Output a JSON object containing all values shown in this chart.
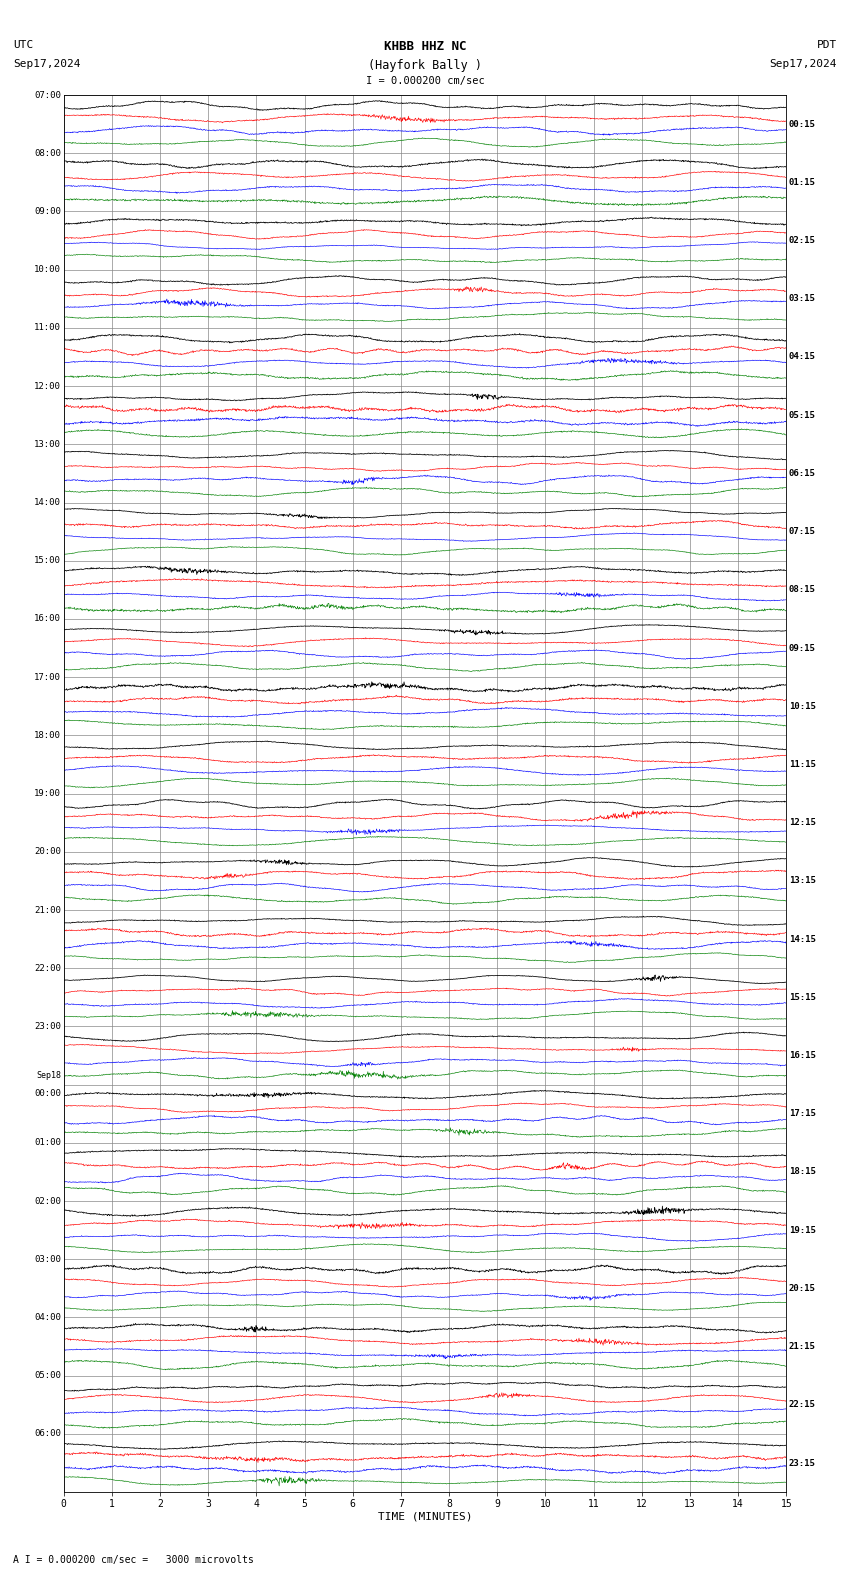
{
  "title_line1": "KHBB HHZ NC",
  "title_line2": "(Hayfork Bally )",
  "scale_label": "I = 0.000200 cm/sec",
  "utc_label": "UTC",
  "pdt_label": "PDT",
  "date_left": "Sep17,2024",
  "date_right": "Sep17,2024",
  "bottom_label": "A I = 0.000200 cm/sec =   3000 microvolts",
  "xlabel": "TIME (MINUTES)",
  "bg_color": "#ffffff",
  "grid_color": "#888888",
  "trace_colors": [
    "black",
    "red",
    "blue",
    "green"
  ],
  "left_times": [
    "07:00",
    "08:00",
    "09:00",
    "10:00",
    "11:00",
    "12:00",
    "13:00",
    "14:00",
    "15:00",
    "16:00",
    "17:00",
    "18:00",
    "19:00",
    "20:00",
    "21:00",
    "22:00",
    "23:00",
    "Sep18\n00:00",
    "01:00",
    "02:00",
    "03:00",
    "04:00",
    "05:00",
    "06:00"
  ],
  "right_times": [
    "00:15",
    "01:15",
    "02:15",
    "03:15",
    "04:15",
    "05:15",
    "06:15",
    "07:15",
    "08:15",
    "09:15",
    "10:15",
    "11:15",
    "12:15",
    "13:15",
    "14:15",
    "15:15",
    "16:15",
    "17:15",
    "18:15",
    "19:15",
    "20:15",
    "21:15",
    "22:15",
    "23:15"
  ],
  "n_rows": 24,
  "n_traces_per_row": 4,
  "x_min": 0,
  "x_max": 15,
  "x_ticks": [
    0,
    1,
    2,
    3,
    4,
    5,
    6,
    7,
    8,
    9,
    10,
    11,
    12,
    13,
    14,
    15
  ]
}
